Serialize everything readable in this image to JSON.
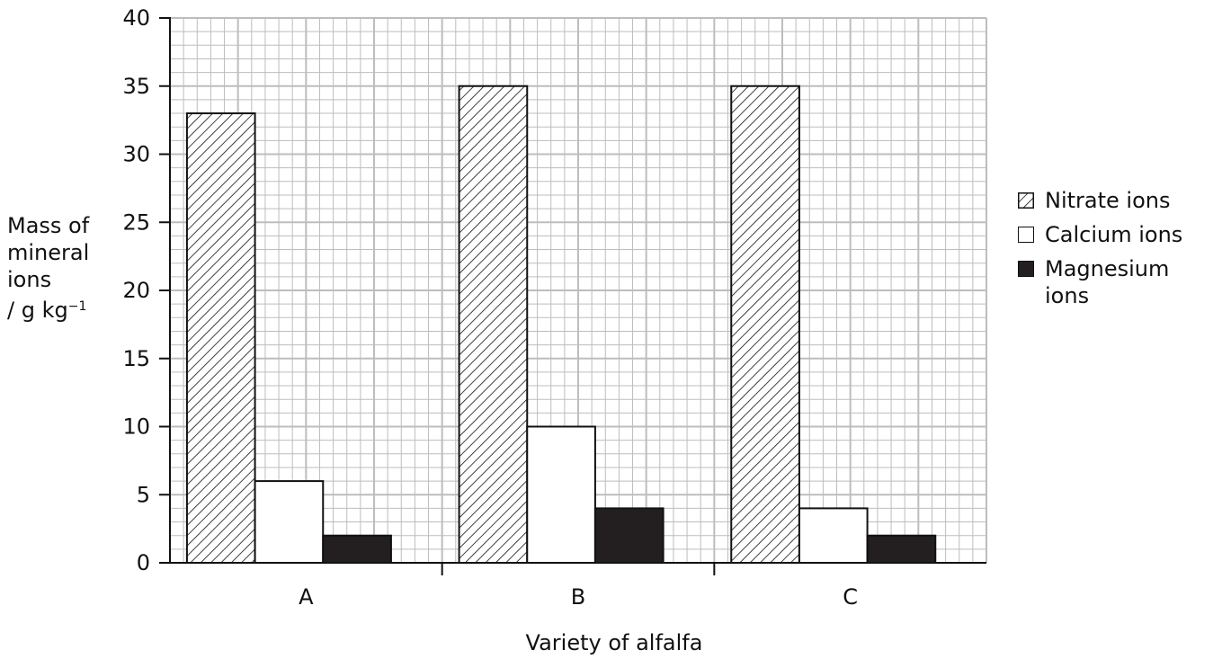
{
  "chart_data": {
    "type": "bar",
    "title": "",
    "xlabel": "Variety of alfalfa",
    "ylabel_lines": [
      "Mass of",
      "mineral",
      "ions",
      "/ g kg"
    ],
    "ylabel_superscript": "−1",
    "ylim": [
      0,
      40
    ],
    "yticks": [
      "0",
      "5",
      "10",
      "15",
      "20",
      "25",
      "30",
      "35",
      "40"
    ],
    "categories": [
      "A",
      "B",
      "C"
    ],
    "grid": true,
    "legend_position": "right",
    "series": [
      {
        "name": "Nitrate ions",
        "values": [
          33,
          35,
          35
        ],
        "fill": "hatched"
      },
      {
        "name": "Calcium ions",
        "values": [
          6,
          10,
          4
        ],
        "fill": "white"
      },
      {
        "name": "Magnesium ions",
        "values": [
          2,
          4,
          2
        ],
        "fill": "black"
      }
    ]
  },
  "colors": {
    "grid": "#bdbdbd",
    "axis": "#111111",
    "bar_outline": "#111111",
    "magnesium": "#231f20"
  }
}
